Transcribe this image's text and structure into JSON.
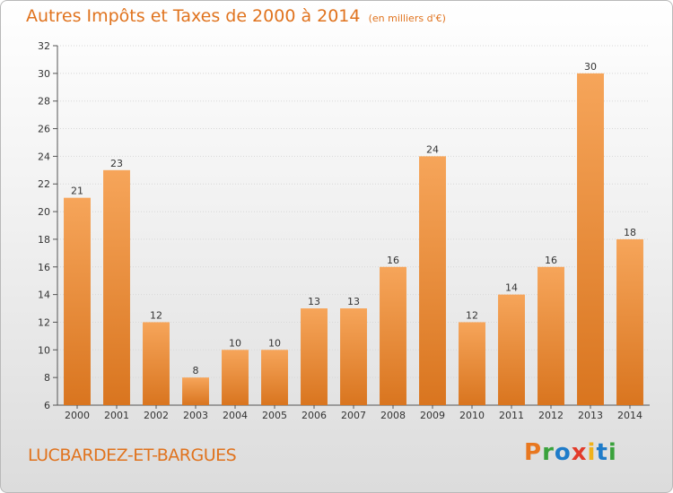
{
  "header": {
    "title": "Autres Impôts et Taxes de 2000 à 2014",
    "subtitle": "(en milliers d'€)"
  },
  "footer": {
    "commune": "LUCBARDEZ-ET-BARGUES",
    "logo": "Proxiti"
  },
  "colors": {
    "accent": "#e0731e",
    "bar_top": "#f6a55a",
    "bar_bottom": "#d9751f",
    "logo_letters": [
      "#e8771f",
      "#3aa23c",
      "#1f7cc9",
      "#e23b2a",
      "#f0b21b",
      "#1f7cc9",
      "#3aa23c"
    ]
  },
  "chart_data": {
    "type": "bar",
    "title": "Autres Impôts et Taxes de 2000 à 2014",
    "subtitle": "(en milliers d'€)",
    "categories": [
      "2000",
      "2001",
      "2002",
      "2003",
      "2004",
      "2005",
      "2006",
      "2007",
      "2008",
      "2009",
      "2010",
      "2011",
      "2012",
      "2013",
      "2014"
    ],
    "values": [
      21,
      23,
      12,
      8,
      10,
      10,
      13,
      13,
      16,
      24,
      12,
      14,
      16,
      30,
      18
    ],
    "ylim": [
      6,
      32
    ],
    "yticks": [
      6,
      8,
      10,
      12,
      14,
      16,
      18,
      20,
      22,
      24,
      26,
      28,
      30,
      32
    ],
    "grid": true,
    "xlabel": "",
    "ylabel": ""
  }
}
